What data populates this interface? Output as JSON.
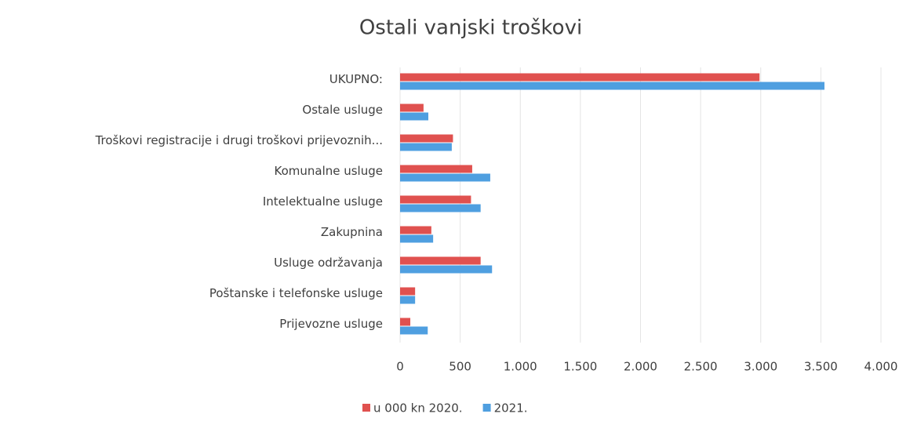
{
  "chart_data": {
    "type": "hbar",
    "title": "Ostali vanjski troškovi",
    "categories": [
      "UKUPNO:",
      "Ostale usluge",
      "Troškovi registracije i drugi troškovi prijevoznih...",
      "Komunalne usluge",
      "Intelektualne usluge",
      "Zakupnina",
      "Usluge održavanja",
      "Poštanske i telefonske usluge",
      "Prijevozne usluge"
    ],
    "series": [
      {
        "name": "u 000 kn 2020.",
        "color": "#e0514f",
        "values": [
          2990,
          195,
          440,
          600,
          590,
          260,
          670,
          125,
          85
        ]
      },
      {
        "name": "2021.",
        "color": "#4f9fe0",
        "values": [
          3530,
          235,
          430,
          750,
          670,
          275,
          765,
          125,
          230
        ]
      }
    ],
    "xlim": [
      0,
      4000
    ],
    "xticks": [
      0,
      500,
      {
        "value": 1000,
        "label": "1.000"
      },
      {
        "value": 1500,
        "label": "1.500"
      },
      {
        "value": 2000,
        "label": "2.000"
      },
      {
        "value": 2500,
        "label": "2.500"
      },
      {
        "value": 3000,
        "label": "3.000"
      },
      {
        "value": 3500,
        "label": "3.500"
      },
      {
        "value": 4000,
        "label": "4.000"
      }
    ],
    "grid": true,
    "legend": "bottom"
  }
}
